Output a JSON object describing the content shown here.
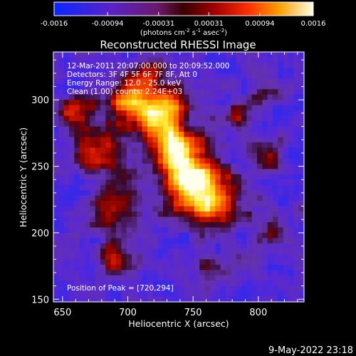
{
  "chart_data": {
    "type": "heatmap",
    "title": "Reconstructed RHESSI Image",
    "xlabel": "Heliocentric X (arcsec)",
    "ylabel": "Heliocentric Y (arcsec)",
    "xlim": [
      643,
      835
    ],
    "ylim": [
      148,
      336
    ],
    "xticks": [
      650,
      700,
      750,
      800
    ],
    "yticks": [
      150,
      200,
      250,
      300
    ],
    "grid": false,
    "colorbar": {
      "orientation": "horizontal",
      "placement": "top",
      "min": -0.0016,
      "max": 0.0016,
      "tick_labels": [
        "-0.0016",
        "-0.00094",
        "-0.00031",
        "0.00031",
        "0.00094",
        "0.0016"
      ],
      "units_label": "(photons cm-2 s-1 asec-2)"
    },
    "annotations": [
      "12-Mar-2011 20:07:00.000 to 20:09:52.000",
      "Detectors: 3F 4F 5F 6F 7F 8F, Att 0",
      "Energy Range: 12.0 - 25.0 keV",
      "Clean  (1.00) counts: 2.24E+03"
    ],
    "peak_label": "Position of Peak = [720,294]",
    "peak_position": [
      720,
      294
    ],
    "grid_size": [
      48,
      47
    ]
  },
  "footer": {
    "date": "9-May-2022 23:18"
  }
}
